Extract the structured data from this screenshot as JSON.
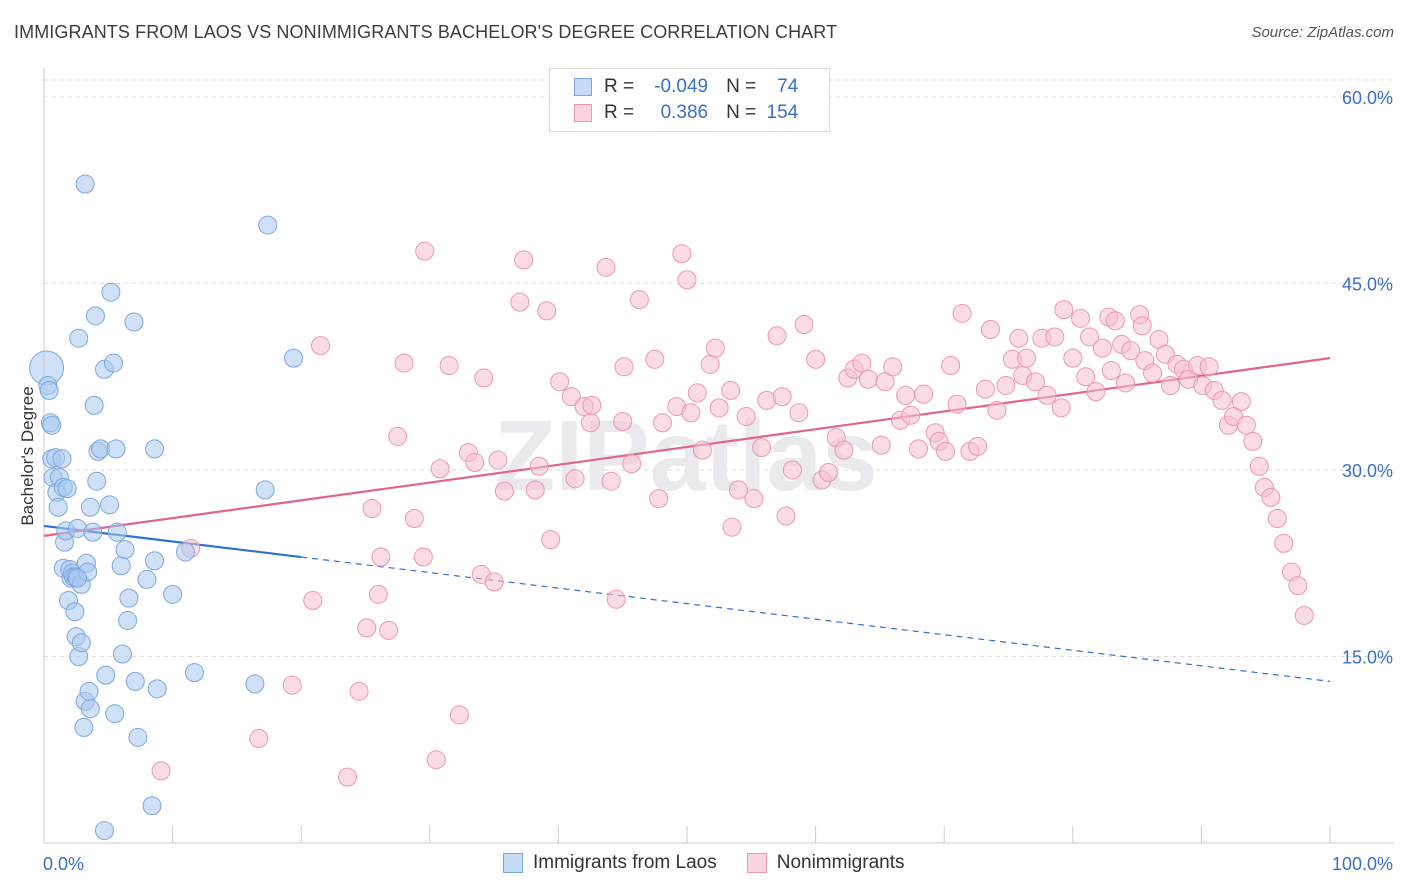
{
  "title": "IMMIGRANTS FROM LAOS VS NONIMMIGRANTS BACHELOR'S DEGREE CORRELATION CHART",
  "source": "Source: ZipAtlas.com",
  "watermark": "ZIPatlas",
  "legend": {
    "rows": [
      {
        "r_label": "R =",
        "r_value": "-0.049",
        "n_label": "N =",
        "n_value": "74"
      },
      {
        "r_label": "R =",
        "r_value": "0.386",
        "n_label": "N =",
        "n_value": "154"
      }
    ]
  },
  "colors": {
    "blue_fill": "#aac8f0",
    "blue_stroke": "#7aa7e0",
    "blue_line": "#2f6fd0",
    "pink_fill": "#f7bfd0",
    "pink_stroke": "#ec97b4",
    "pink_line": "#e0648e",
    "tick_text": "#3a6fc4",
    "grid": "#dddddd"
  },
  "chart_data": {
    "type": "scatter",
    "title": "IMMIGRANTS FROM LAOS VS NONIMMIGRANTS BACHELOR'S DEGREE CORRELATION CHART",
    "xlabel": "",
    "ylabel": "Bachelor's Degree",
    "xlim": [
      0,
      100
    ],
    "ylim": [
      0,
      61
    ],
    "x_tick_labels": [
      "0.0%",
      "100.0%"
    ],
    "y_ticks": [
      15,
      30,
      45,
      60
    ],
    "y_tick_labels": [
      "15.0%",
      "30.0%",
      "45.0%",
      "60.0%"
    ],
    "grid": "horizontal dashed",
    "legend_position": "bottom",
    "series": [
      {
        "name": "Immigrants from Laos",
        "color": "#aac8f0",
        "r": -0.049,
        "n": 74,
        "trend": {
          "x": [
            0,
            20
          ],
          "y": [
            25.5,
            23.0
          ],
          "dashed_extension_to": [
            100,
            13.0
          ]
        },
        "points": [
          [
            0.2,
            38.2
          ],
          [
            0.3,
            36.8
          ],
          [
            0.4,
            36.4
          ],
          [
            0.5,
            33.8
          ],
          [
            0.6,
            33.6
          ],
          [
            0.6,
            30.9
          ],
          [
            0.7,
            29.4
          ],
          [
            0.9,
            31.0
          ],
          [
            1.0,
            28.2
          ],
          [
            1.2,
            29.4
          ],
          [
            1.1,
            27.0
          ],
          [
            1.4,
            30.9
          ],
          [
            1.5,
            28.6
          ],
          [
            1.5,
            22.1
          ],
          [
            1.6,
            24.2
          ],
          [
            1.7,
            25.1
          ],
          [
            1.8,
            28.5
          ],
          [
            1.9,
            19.5
          ],
          [
            2.0,
            22.0
          ],
          [
            2.1,
            21.3
          ],
          [
            2.2,
            21.7
          ],
          [
            2.3,
            21.4
          ],
          [
            2.4,
            18.6
          ],
          [
            2.5,
            16.6
          ],
          [
            2.5,
            21.4
          ],
          [
            2.6,
            25.3
          ],
          [
            2.7,
            15.0
          ],
          [
            2.7,
            40.6
          ],
          [
            2.9,
            20.8
          ],
          [
            2.9,
            16.1
          ],
          [
            3.1,
            9.3
          ],
          [
            3.2,
            11.4
          ],
          [
            3.3,
            22.5
          ],
          [
            3.4,
            21.8
          ],
          [
            3.5,
            12.2
          ],
          [
            3.6,
            10.8
          ],
          [
            3.6,
            27.0
          ],
          [
            3.8,
            25.0
          ],
          [
            3.9,
            35.2
          ],
          [
            4.0,
            42.4
          ],
          [
            4.1,
            29.1
          ],
          [
            4.2,
            31.5
          ],
          [
            4.4,
            31.7
          ],
          [
            4.7,
            38.1
          ],
          [
            4.7,
            1.0
          ],
          [
            4.8,
            13.5
          ],
          [
            5.1,
            27.2
          ],
          [
            5.2,
            44.3
          ],
          [
            5.4,
            38.6
          ],
          [
            5.5,
            10.4
          ],
          [
            5.6,
            31.7
          ],
          [
            5.7,
            25.0
          ],
          [
            6.0,
            22.3
          ],
          [
            6.1,
            15.2
          ],
          [
            6.3,
            23.6
          ],
          [
            6.5,
            17.9
          ],
          [
            6.6,
            19.7
          ],
          [
            7.0,
            41.9
          ],
          [
            7.1,
            13.0
          ],
          [
            7.3,
            8.5
          ],
          [
            8.0,
            21.2
          ],
          [
            8.4,
            3.0
          ],
          [
            8.6,
            31.7
          ],
          [
            8.6,
            22.7
          ],
          [
            8.8,
            12.4
          ],
          [
            10.0,
            20.0
          ],
          [
            11.0,
            23.4
          ],
          [
            11.7,
            13.7
          ],
          [
            3.2,
            53.0
          ],
          [
            17.2,
            28.4
          ],
          [
            16.4,
            12.8
          ],
          [
            17.4,
            49.7
          ],
          [
            19.4,
            39.0
          ],
          [
            2.6,
            21.3
          ]
        ]
      },
      {
        "name": "Nonimmigrants",
        "color": "#f7bfd0",
        "r": 0.386,
        "n": 154,
        "trend": {
          "x": [
            0,
            100
          ],
          "y": [
            24.7,
            39.0
          ]
        },
        "points": [
          [
            11.4,
            23.7
          ],
          [
            9.1,
            5.8
          ],
          [
            16.7,
            8.4
          ],
          [
            19.3,
            12.7
          ],
          [
            20.9,
            19.5
          ],
          [
            21.5,
            40.0
          ],
          [
            23.6,
            5.3
          ],
          [
            24.5,
            12.2
          ],
          [
            25.1,
            17.3
          ],
          [
            25.5,
            26.9
          ],
          [
            26.0,
            20.0
          ],
          [
            26.2,
            23.0
          ],
          [
            26.8,
            17.1
          ],
          [
            27.5,
            32.7
          ],
          [
            28.0,
            38.6
          ],
          [
            28.8,
            26.1
          ],
          [
            29.5,
            23.0
          ],
          [
            29.6,
            47.6
          ],
          [
            30.5,
            6.7
          ],
          [
            30.8,
            30.1
          ],
          [
            31.5,
            38.4
          ],
          [
            32.3,
            10.3
          ],
          [
            33.0,
            31.4
          ],
          [
            33.5,
            30.6
          ],
          [
            34.0,
            21.6
          ],
          [
            34.2,
            37.4
          ],
          [
            35.0,
            21.0
          ],
          [
            35.3,
            30.8
          ],
          [
            35.8,
            28.3
          ],
          [
            37.0,
            43.5
          ],
          [
            37.3,
            46.9
          ],
          [
            38.2,
            28.4
          ],
          [
            38.5,
            30.3
          ],
          [
            39.1,
            42.8
          ],
          [
            39.4,
            24.4
          ],
          [
            40.1,
            37.1
          ],
          [
            41.0,
            35.9
          ],
          [
            41.3,
            29.3
          ],
          [
            42.0,
            35.1
          ],
          [
            42.5,
            33.8
          ],
          [
            42.6,
            35.2
          ],
          [
            43.7,
            46.3
          ],
          [
            44.1,
            29.1
          ],
          [
            44.5,
            19.6
          ],
          [
            45.0,
            33.9
          ],
          [
            45.1,
            38.3
          ],
          [
            45.7,
            30.5
          ],
          [
            46.3,
            43.7
          ],
          [
            47.2,
            59.0
          ],
          [
            47.5,
            38.9
          ],
          [
            47.8,
            27.7
          ],
          [
            48.1,
            33.8
          ],
          [
            49.2,
            35.1
          ],
          [
            49.6,
            47.4
          ],
          [
            50.0,
            45.3
          ],
          [
            50.3,
            34.6
          ],
          [
            50.8,
            36.2
          ],
          [
            51.2,
            31.6
          ],
          [
            51.8,
            38.5
          ],
          [
            52.2,
            39.8
          ],
          [
            52.5,
            35.0
          ],
          [
            53.4,
            36.4
          ],
          [
            53.5,
            25.4
          ],
          [
            54.0,
            28.4
          ],
          [
            54.6,
            34.3
          ],
          [
            55.2,
            27.7
          ],
          [
            55.8,
            31.8
          ],
          [
            56.2,
            35.6
          ],
          [
            57.0,
            40.8
          ],
          [
            57.4,
            35.9
          ],
          [
            57.7,
            26.3
          ],
          [
            58.2,
            30.0
          ],
          [
            58.7,
            34.6
          ],
          [
            59.1,
            41.7
          ],
          [
            60.0,
            38.9
          ],
          [
            60.5,
            29.2
          ],
          [
            61.0,
            29.8
          ],
          [
            61.6,
            32.6
          ],
          [
            62.2,
            31.6
          ],
          [
            62.5,
            37.4
          ],
          [
            63.0,
            38.1
          ],
          [
            63.6,
            38.6
          ],
          [
            64.1,
            37.3
          ],
          [
            65.1,
            32.0
          ],
          [
            65.4,
            37.1
          ],
          [
            66.0,
            38.3
          ],
          [
            66.6,
            34.0
          ],
          [
            67.0,
            36.0
          ],
          [
            67.4,
            34.4
          ],
          [
            68.0,
            31.7
          ],
          [
            68.4,
            36.1
          ],
          [
            69.3,
            33.0
          ],
          [
            69.6,
            32.3
          ],
          [
            70.1,
            31.5
          ],
          [
            70.5,
            38.4
          ],
          [
            71.0,
            35.3
          ],
          [
            71.4,
            42.6
          ],
          [
            72.0,
            31.5
          ],
          [
            72.6,
            31.9
          ],
          [
            73.2,
            36.5
          ],
          [
            73.6,
            41.3
          ],
          [
            74.1,
            34.8
          ],
          [
            74.8,
            36.8
          ],
          [
            75.3,
            38.9
          ],
          [
            75.8,
            40.6
          ],
          [
            76.1,
            37.6
          ],
          [
            76.4,
            39.0
          ],
          [
            77.1,
            37.1
          ],
          [
            77.6,
            40.6
          ],
          [
            78.0,
            36.0
          ],
          [
            78.6,
            40.7
          ],
          [
            79.1,
            35.0
          ],
          [
            79.3,
            42.9
          ],
          [
            80.0,
            39.0
          ],
          [
            80.6,
            42.2
          ],
          [
            81.0,
            37.5
          ],
          [
            81.3,
            40.7
          ],
          [
            81.8,
            36.3
          ],
          [
            82.3,
            39.8
          ],
          [
            82.8,
            42.3
          ],
          [
            83.0,
            38.0
          ],
          [
            83.3,
            42.0
          ],
          [
            83.8,
            40.1
          ],
          [
            84.1,
            37.0
          ],
          [
            84.5,
            39.6
          ],
          [
            85.2,
            42.5
          ],
          [
            85.4,
            41.6
          ],
          [
            85.6,
            38.8
          ],
          [
            86.2,
            37.8
          ],
          [
            86.7,
            40.5
          ],
          [
            87.2,
            39.3
          ],
          [
            87.6,
            36.8
          ],
          [
            88.1,
            38.5
          ],
          [
            88.6,
            38.1
          ],
          [
            89.0,
            37.3
          ],
          [
            89.7,
            38.4
          ],
          [
            90.1,
            36.8
          ],
          [
            90.6,
            38.3
          ],
          [
            91.0,
            36.4
          ],
          [
            91.6,
            35.6
          ],
          [
            92.1,
            33.6
          ],
          [
            92.5,
            34.3
          ],
          [
            93.1,
            35.5
          ],
          [
            93.5,
            33.6
          ],
          [
            94.0,
            32.3
          ],
          [
            94.5,
            30.3
          ],
          [
            94.9,
            28.6
          ],
          [
            95.4,
            27.8
          ],
          [
            95.9,
            26.1
          ],
          [
            96.4,
            24.1
          ],
          [
            97.0,
            21.8
          ],
          [
            97.5,
            20.7
          ],
          [
            98.0,
            18.3
          ]
        ]
      }
    ]
  },
  "bottom_legend": {
    "items": [
      {
        "label": "Immigrants from Laos"
      },
      {
        "label": "Nonimmigrants"
      }
    ]
  }
}
